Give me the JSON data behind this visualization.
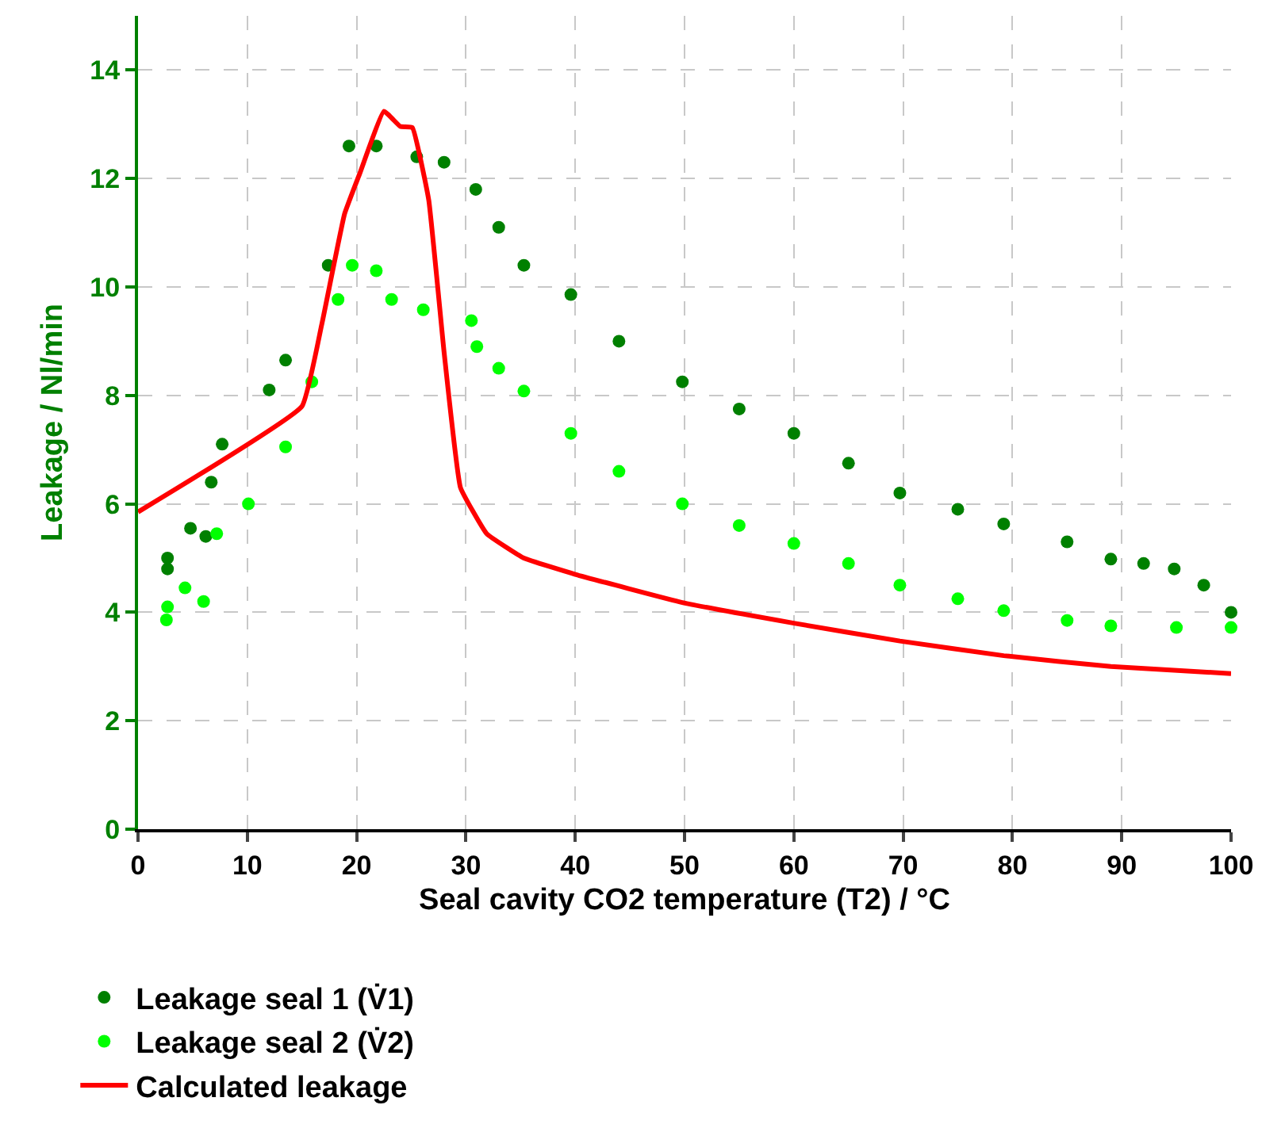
{
  "chart_data": {
    "type": "scatter",
    "xlabel": "Seal cavity CO2 temperature (T2) / °C",
    "ylabel": "Leakage / Nl/min",
    "xlim": [
      0,
      100
    ],
    "xticks": [
      0,
      10,
      20,
      30,
      40,
      50,
      60,
      70,
      80,
      90,
      100
    ],
    "ylim": [
      0,
      15
    ],
    "yticks": [
      0,
      2,
      4,
      6,
      8,
      10,
      12,
      14
    ],
    "grid": true,
    "legend": "bottom",
    "series": [
      {
        "name": "Leakage seal 1 (V̇1)",
        "marker": "circle",
        "color": "#008000",
        "x": [
          2.7,
          2.7,
          4.8,
          6.2,
          6.7,
          7.7,
          12,
          13.5,
          17.4,
          19.3,
          21.8,
          25.5,
          28,
          30.9,
          33,
          35.3,
          39.6,
          44,
          49.8,
          55,
          60,
          65,
          69.7,
          75,
          79.2,
          85,
          89,
          92,
          94.8,
          97.5,
          100
        ],
        "values": [
          4.8,
          5.0,
          5.55,
          5.4,
          6.4,
          7.1,
          8.1,
          8.65,
          10.4,
          12.6,
          12.6,
          12.4,
          12.3,
          11.8,
          11.1,
          10.4,
          9.86,
          9.0,
          8.25,
          7.75,
          7.3,
          6.75,
          6.2,
          5.9,
          5.63,
          5.3,
          4.98,
          4.9,
          4.8,
          4.5,
          4.0
        ]
      },
      {
        "name": "Leakage seal 2 (V̇2)",
        "marker": "circle",
        "color": "#00ff00",
        "x": [
          2.6,
          2.7,
          4.3,
          6.0,
          7.2,
          10.1,
          13.5,
          15.9,
          18.3,
          19.6,
          21.8,
          23.2,
          26.1,
          30.5,
          31,
          33,
          35.3,
          39.6,
          44,
          49.8,
          55,
          60,
          65,
          69.7,
          75,
          79.2,
          85,
          89,
          95,
          100
        ],
        "values": [
          3.86,
          4.1,
          4.45,
          4.2,
          5.45,
          6.0,
          7.05,
          8.25,
          9.77,
          10.4,
          10.3,
          9.77,
          9.58,
          9.38,
          8.9,
          8.5,
          8.08,
          7.3,
          6.6,
          6.0,
          5.6,
          5.27,
          4.9,
          4.5,
          4.25,
          4.03,
          3.85,
          3.75,
          3.72,
          3.72
        ]
      },
      {
        "name": "Calculated leakage",
        "type": "line",
        "marker": "none",
        "color": "#ff0000",
        "x": [
          0,
          15,
          16.8,
          18.9,
          20.3,
          22.5,
          24,
          25.1,
          26.6,
          28,
          29.5,
          31.9,
          35.3,
          40,
          49.8,
          60,
          69.7,
          79.2,
          89,
          100
        ],
        "values": [
          5.85,
          7.8,
          9.3,
          11.35,
          12.1,
          13.24,
          12.96,
          12.94,
          11.6,
          8.8,
          6.3,
          5.45,
          5.0,
          4.7,
          4.18,
          3.8,
          3.47,
          3.2,
          3.0,
          2.87
        ]
      }
    ]
  }
}
